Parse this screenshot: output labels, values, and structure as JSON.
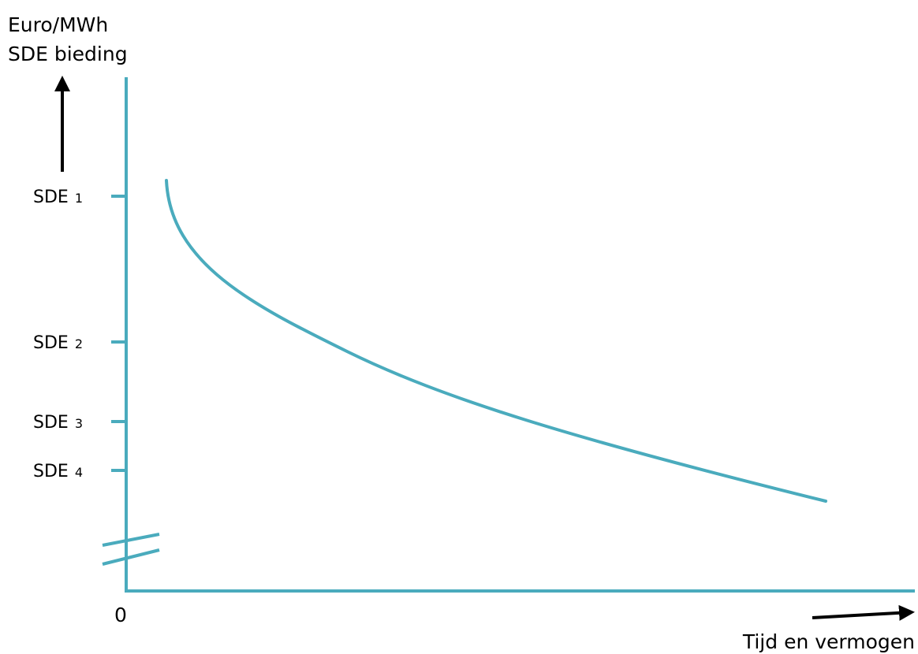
{
  "chart_data": {
    "type": "line",
    "ylabel_lines": [
      "Euro/MWh",
      "SDE bieding"
    ],
    "xlabel": "Tijd en vermogen",
    "origin_label": "0",
    "y_ticks": [
      {
        "name": "SDE",
        "sub": "1"
      },
      {
        "name": "SDE",
        "sub": "2"
      },
      {
        "name": "SDE",
        "sub": "3"
      },
      {
        "name": "SDE",
        "sub": "4"
      }
    ],
    "axis_break": true,
    "grid": false,
    "colors": {
      "axis": "#4aabbd",
      "curve": "#4aabbd",
      "arrow": "#000000",
      "text": "#000000"
    }
  }
}
